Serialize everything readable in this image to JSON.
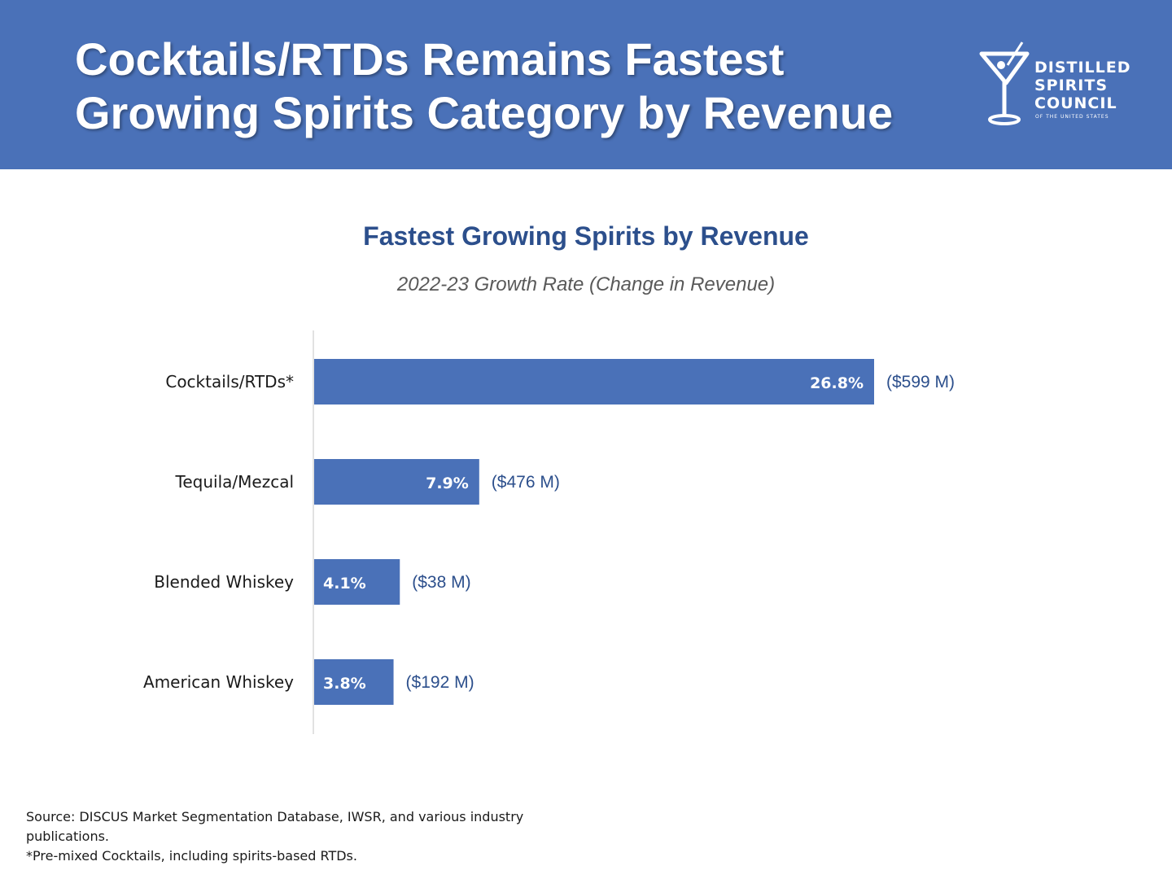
{
  "header": {
    "title_line1": "Cocktails/RTDs Remains Fastest",
    "title_line2": "Growing Spirits Category by Revenue",
    "logo": {
      "line1": "DISTILLED",
      "line2": "SPIRITS",
      "line3": "COUNCIL",
      "subline": "OF THE UNITED STATES",
      "icon": "martini-glass-icon"
    }
  },
  "chart_data": {
    "type": "bar",
    "orientation": "horizontal",
    "title": "Fastest Growing Spirits by Revenue",
    "subtitle": "2022-23 Growth Rate (Change in Revenue)",
    "categories": [
      "Cocktails/RTDs*",
      "Tequila/Mezcal",
      "Blended Whiskey",
      "American Whiskey"
    ],
    "values": [
      26.8,
      7.9,
      4.1,
      3.8
    ],
    "value_labels": [
      "26.8%",
      "7.9%",
      "4.1%",
      "3.8%"
    ],
    "annotations": [
      "($599 M)",
      "($476 M)",
      "($38 M)",
      "($192 M)"
    ],
    "xlim": [
      0,
      26.8
    ],
    "grid": false,
    "bar_color": "#4a71b8",
    "label_color": "#ffffff",
    "annotation_color": "#2c4f8c"
  },
  "footer": {
    "source": "Source: DISCUS Market Segmentation Database, IWSR, and various industry publications.",
    "note": "*Pre-mixed Cocktails, including spirits-based RTDs."
  }
}
